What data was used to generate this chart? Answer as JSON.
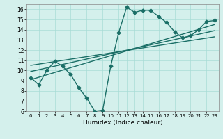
{
  "xlabel": "Humidex (Indice chaleur)",
  "ylabel": "",
  "bg_color": "#d4f0ec",
  "line_color": "#1a6e66",
  "xlim": [
    -0.5,
    23.5
  ],
  "ylim": [
    6,
    16.5
  ],
  "xticks": [
    0,
    1,
    2,
    3,
    4,
    5,
    6,
    7,
    8,
    9,
    10,
    11,
    12,
    13,
    14,
    15,
    16,
    17,
    18,
    19,
    20,
    21,
    22,
    23
  ],
  "yticks": [
    6,
    7,
    8,
    9,
    10,
    11,
    12,
    13,
    14,
    15,
    16
  ],
  "curve1_x": [
    0,
    1,
    2,
    3,
    4,
    5,
    6,
    7,
    8,
    9,
    10,
    11,
    12,
    13,
    14,
    15,
    16,
    17,
    18,
    19,
    20,
    21,
    22,
    23
  ],
  "curve1_y": [
    9.3,
    8.6,
    10.0,
    10.9,
    10.4,
    9.6,
    8.3,
    7.3,
    6.0,
    6.1,
    10.4,
    13.7,
    16.2,
    15.7,
    15.9,
    15.9,
    15.3,
    14.7,
    13.8,
    13.2,
    13.4,
    14.0,
    14.8,
    14.9
  ],
  "line1_x": [
    0,
    23
  ],
  "line1_y": [
    9.1,
    14.5
  ],
  "line2_x": [
    0,
    23
  ],
  "line2_y": [
    9.9,
    13.9
  ],
  "line3_x": [
    0,
    23
  ],
  "line3_y": [
    10.5,
    13.3
  ],
  "marker": "D",
  "marker_size": 2.5,
  "linewidth": 1.0
}
